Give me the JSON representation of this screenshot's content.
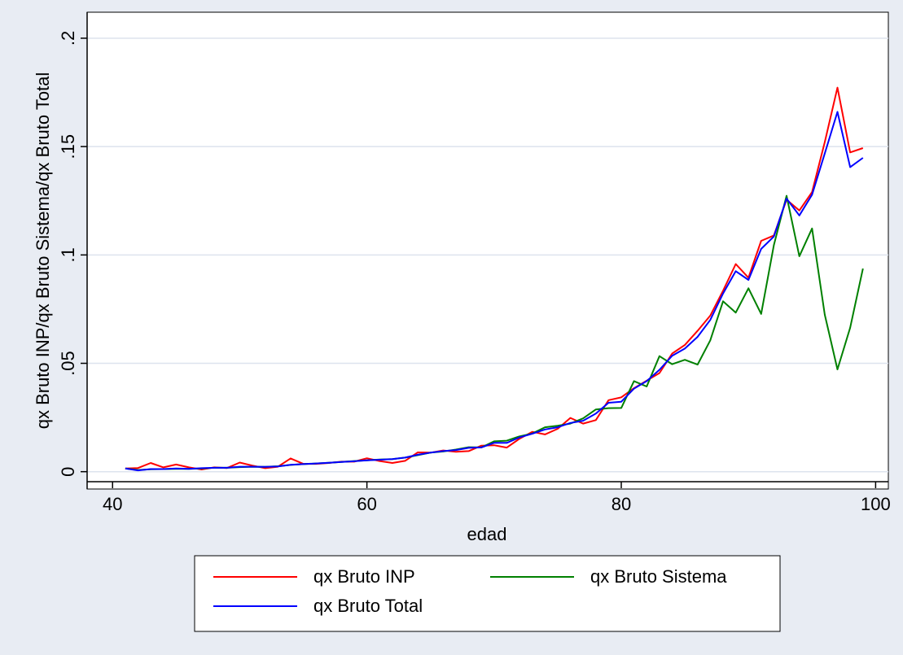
{
  "chart_data": {
    "type": "line",
    "xlabel": "edad",
    "ylabel": "qx Bruto INP/qx Bruto Sistema/qx Bruto Total",
    "xlim": [
      38,
      101
    ],
    "ylim": [
      -0.008,
      0.212
    ],
    "xticks": [
      40,
      60,
      80,
      100
    ],
    "xtick_labels": [
      "40",
      "60",
      "80",
      "100"
    ],
    "yticks": [
      0,
      0.05,
      0.1,
      0.15,
      0.2
    ],
    "ytick_labels": [
      "0",
      ".05",
      ".1",
      ".15",
      ".2"
    ],
    "grid": "horizontal",
    "legend_position": "bottom",
    "x": [
      41,
      42,
      43,
      44,
      45,
      46,
      47,
      48,
      49,
      50,
      51,
      52,
      53,
      54,
      55,
      56,
      57,
      58,
      59,
      60,
      61,
      62,
      63,
      64,
      65,
      66,
      67,
      68,
      69,
      70,
      71,
      72,
      73,
      74,
      75,
      76,
      77,
      78,
      79,
      80,
      81,
      82,
      83,
      84,
      85,
      86,
      87,
      88,
      89,
      90,
      91,
      92,
      93,
      94,
      95,
      96,
      97,
      98,
      99
    ],
    "series": [
      {
        "name": "qx Bruto INP",
        "color": "#ff0000",
        "values": [
          0.0015,
          0.0017,
          0.004,
          0.002,
          0.0033,
          0.002,
          0.001,
          0.002,
          0.0017,
          0.0042,
          0.0028,
          0.0016,
          0.0023,
          0.0061,
          0.0036,
          0.0036,
          0.004,
          0.0046,
          0.0046,
          0.0062,
          0.0049,
          0.004,
          0.005,
          0.0089,
          0.0088,
          0.0098,
          0.0092,
          0.0095,
          0.012,
          0.0122,
          0.0111,
          0.0152,
          0.0184,
          0.0172,
          0.0198,
          0.0248,
          0.0222,
          0.0238,
          0.033,
          0.0343,
          0.0385,
          0.042,
          0.0455,
          0.0545,
          0.0585,
          0.065,
          0.072,
          0.0835,
          0.0958,
          0.0895,
          0.1065,
          0.109,
          0.1255,
          0.1205,
          0.129,
          0.152,
          0.1772,
          0.1473,
          0.1493
        ]
      },
      {
        "name": "qx Bruto Sistema",
        "color": "#008000",
        "values": [
          0.0015,
          0.0008,
          0.0011,
          0.0012,
          0.0013,
          0.0013,
          0.0015,
          0.0018,
          0.0018,
          0.0021,
          0.0023,
          0.0022,
          0.0025,
          0.0031,
          0.0035,
          0.0038,
          0.0041,
          0.0045,
          0.0049,
          0.0052,
          0.0056,
          0.0058,
          0.0065,
          0.0076,
          0.0088,
          0.0093,
          0.0102,
          0.0113,
          0.0112,
          0.014,
          0.0143,
          0.0163,
          0.0176,
          0.0205,
          0.0212,
          0.0222,
          0.0246,
          0.0287,
          0.0293,
          0.0294,
          0.0418,
          0.0393,
          0.0533,
          0.0496,
          0.0516,
          0.0494,
          0.0606,
          0.0786,
          0.0734,
          0.0846,
          0.0728,
          0.1045,
          0.1273,
          0.0994,
          0.1122,
          0.0725,
          0.0472,
          0.0664,
          0.0937
        ]
      },
      {
        "name": "qx Bruto Total",
        "color": "#0000ff",
        "values": [
          0.0015,
          0.0006,
          0.0012,
          0.0012,
          0.0015,
          0.0013,
          0.0016,
          0.0018,
          0.0018,
          0.0023,
          0.0023,
          0.0022,
          0.0024,
          0.0032,
          0.0035,
          0.0038,
          0.0041,
          0.0045,
          0.0048,
          0.0052,
          0.0055,
          0.0058,
          0.0065,
          0.0078,
          0.0088,
          0.0095,
          0.01,
          0.011,
          0.0112,
          0.0133,
          0.0133,
          0.0158,
          0.0175,
          0.0195,
          0.0205,
          0.0225,
          0.0235,
          0.0268,
          0.0318,
          0.0323,
          0.0383,
          0.0418,
          0.047,
          0.0535,
          0.0568,
          0.0622,
          0.07,
          0.0822,
          0.0925,
          0.0885,
          0.1028,
          0.1085,
          0.126,
          0.1182,
          0.1278,
          0.1468,
          0.166,
          0.1405,
          0.1448
        ]
      }
    ]
  }
}
